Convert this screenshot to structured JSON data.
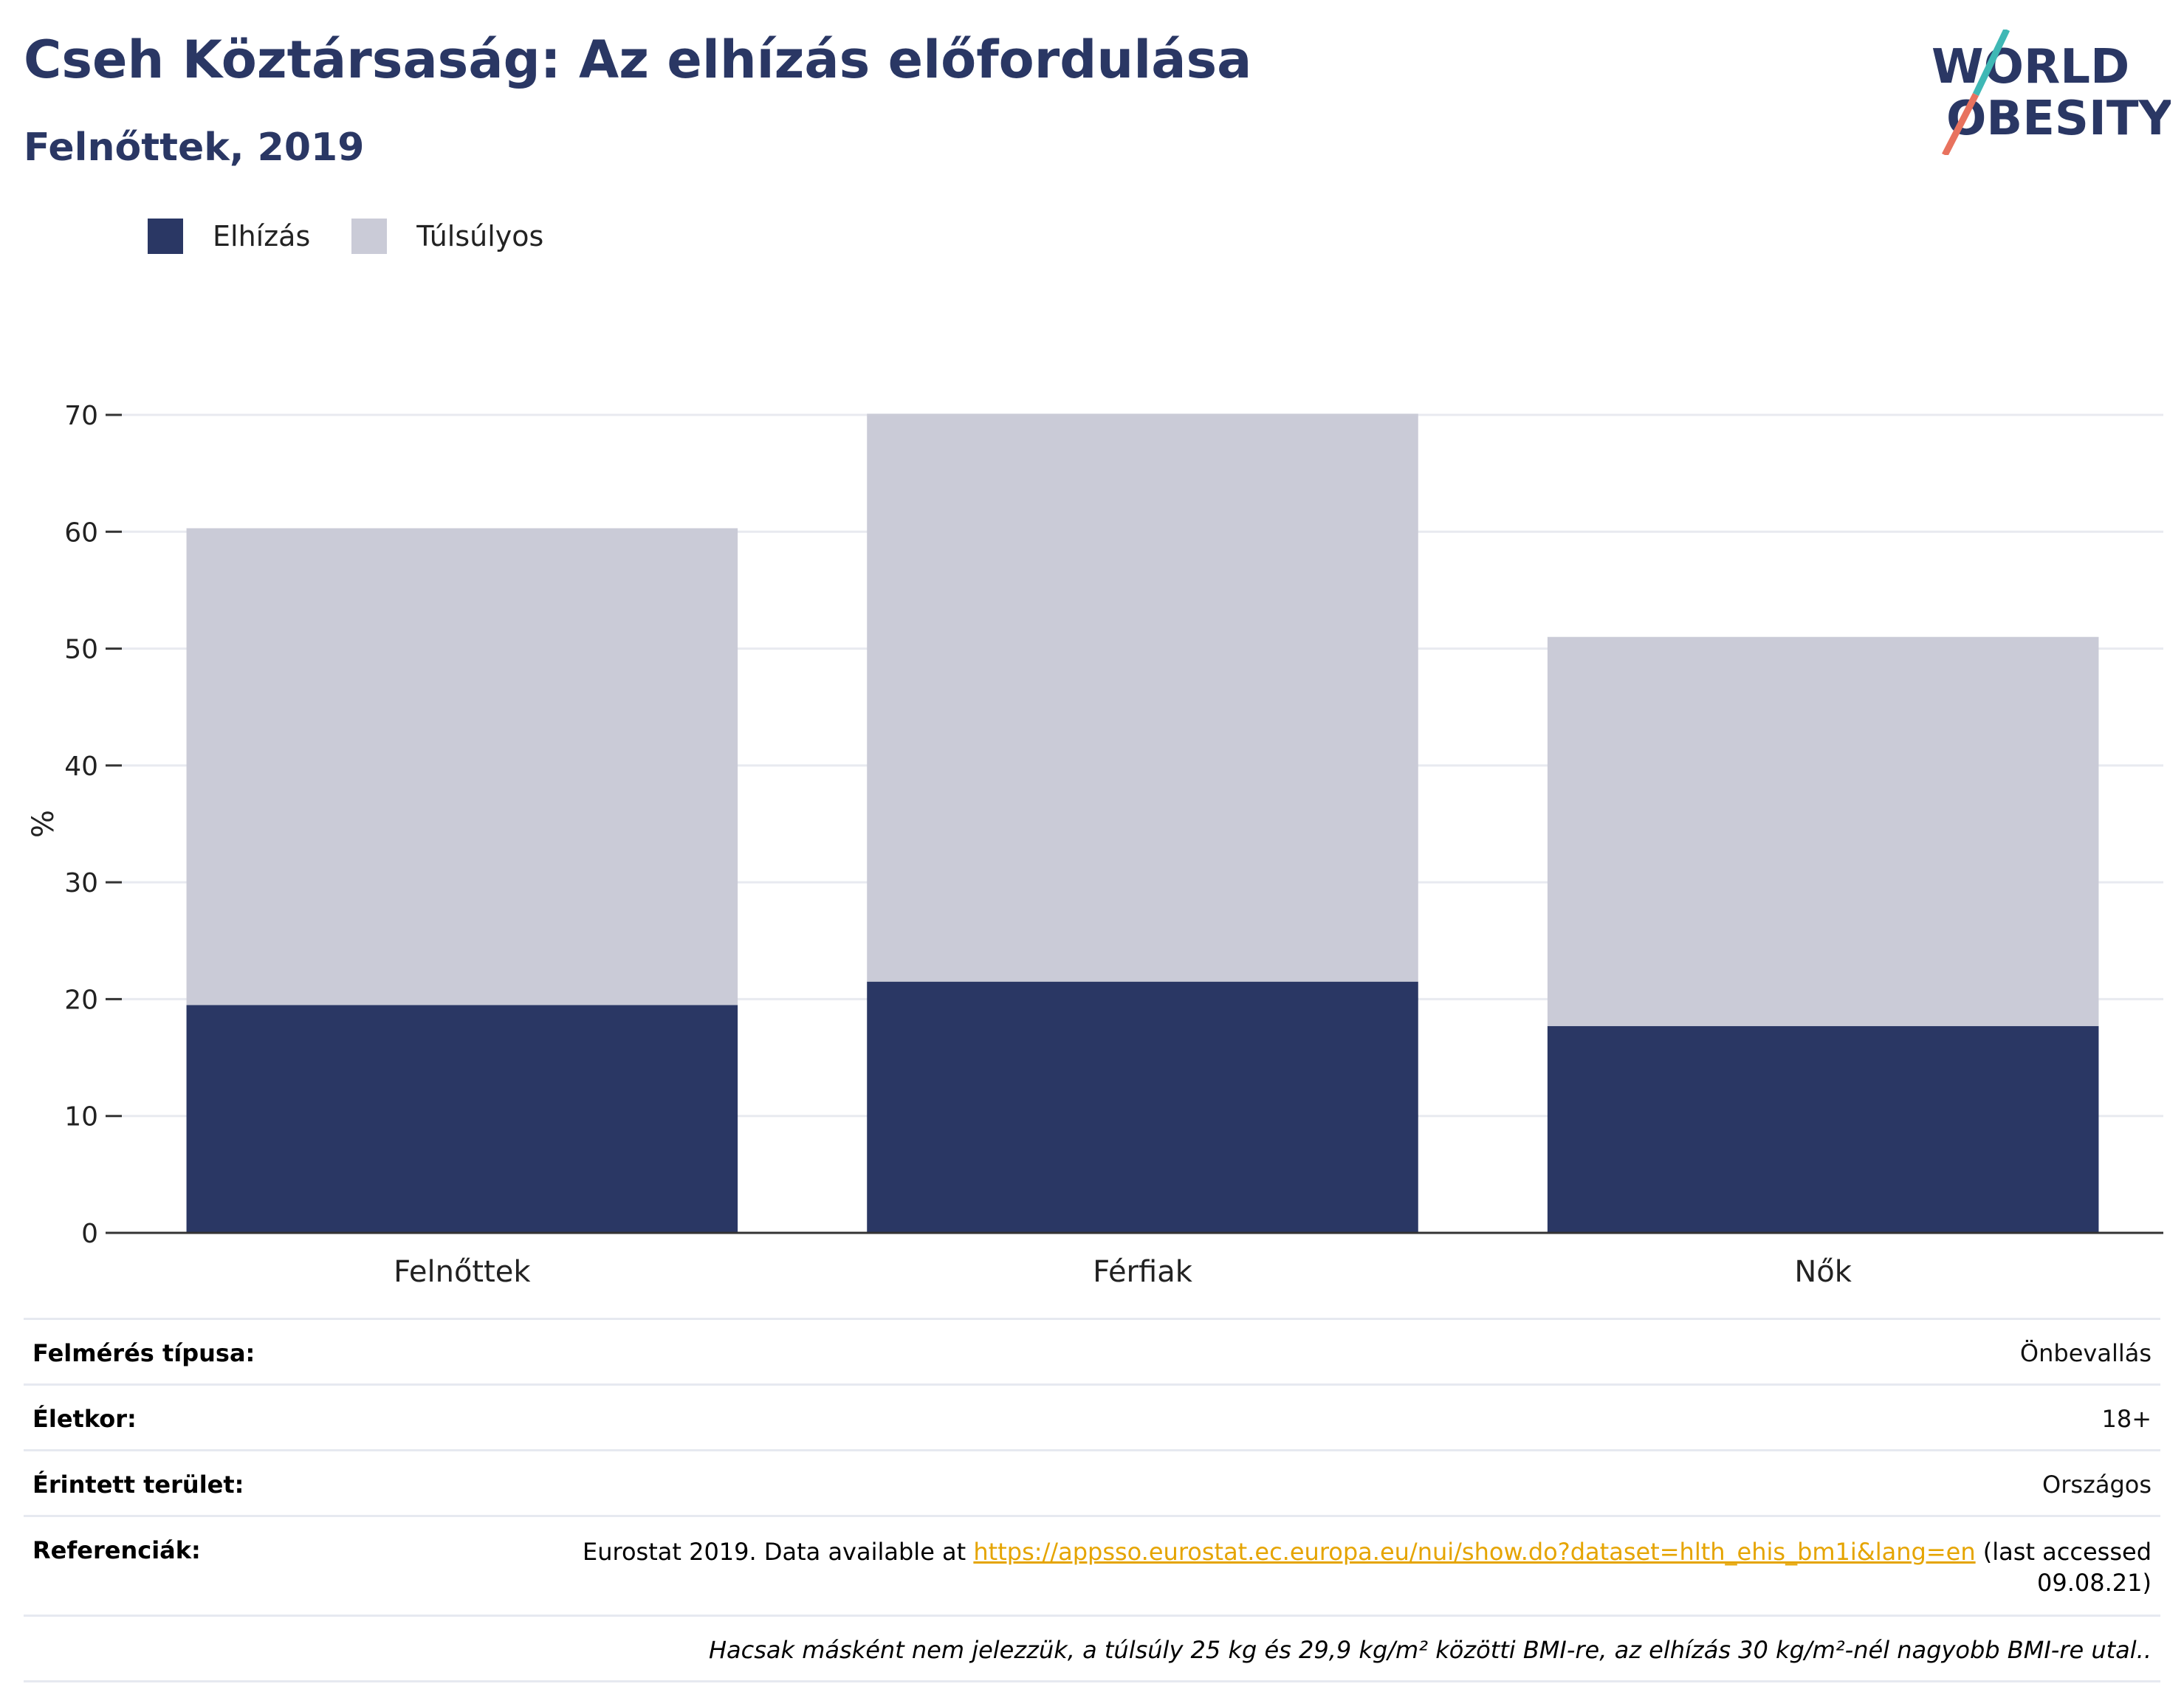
{
  "header": {
    "title": "Cseh Köztársaság: Az elhízás előfordulása",
    "subtitle": "Felnőttek, 2019"
  },
  "logo": {
    "line1": "WORLD",
    "line2": "OBESITY"
  },
  "colors": {
    "obesity": "#2a3764",
    "overweight": "#cacbd7",
    "title": "#2a3764",
    "link": "#e5a400"
  },
  "legend": [
    {
      "label": "Elhízás",
      "color": "#2a3764"
    },
    {
      "label": "Túlsúlyos",
      "color": "#cacbd7"
    }
  ],
  "chart_data": {
    "type": "bar",
    "stacked": true,
    "categories": [
      "Felnőttek",
      "Férfiak",
      "Nők"
    ],
    "series": [
      {
        "name": "Elhízás",
        "values": [
          19.5,
          21.5,
          17.7
        ]
      },
      {
        "name": "Túlsúlyos",
        "values": [
          40.8,
          48.6,
          33.3
        ]
      }
    ],
    "totals": [
      60.3,
      70.1,
      51.0
    ],
    "ylabel": "%",
    "yticks": [
      0,
      10,
      20,
      30,
      40,
      50,
      60,
      70
    ],
    "ylim": [
      0,
      70
    ],
    "grid": true,
    "legend_position": "top-left"
  },
  "meta": {
    "survey_type": {
      "label": "Felmérés típusa:",
      "value": "Önbevallás"
    },
    "age": {
      "label": "Életkor:",
      "value": "18+"
    },
    "area": {
      "label": "Érintett terület:",
      "value": "Országos"
    },
    "references": {
      "label": "Referenciák:",
      "prefix": "Eurostat 2019. Data available at ",
      "link": "https://appsso.eurostat.ec.europa.eu/nui/show.do?dataset=hlth_ehis_bm1i&lang=en",
      "suffix": " (last accessed",
      "suffix2": "09.08.21)"
    },
    "note": "Hacsak másként nem jelezzük, a túlsúly 25 kg és 29,9 kg/m² közötti BMI-re, az elhízás 30 kg/m²-nél nagyobb BMI-re utal.."
  }
}
